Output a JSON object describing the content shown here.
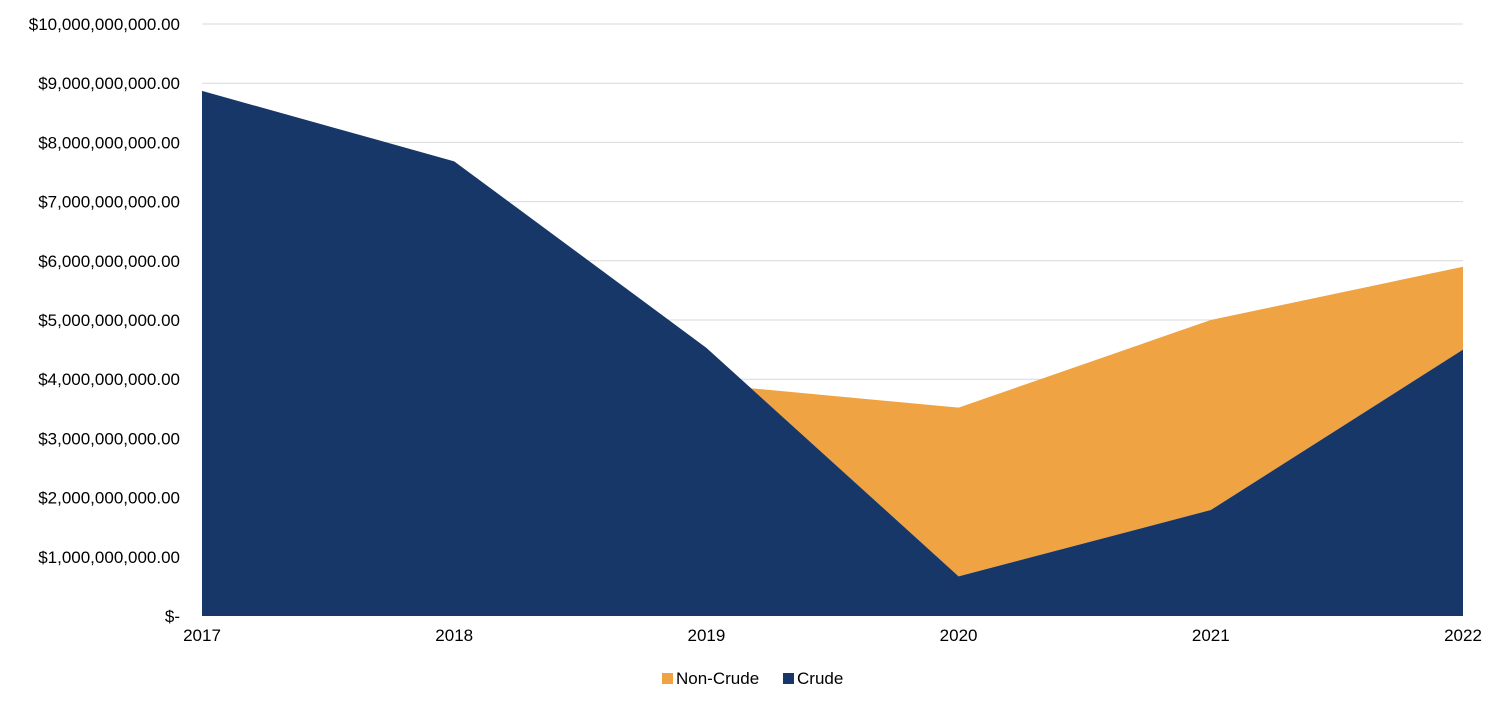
{
  "chart_data": {
    "type": "area",
    "stacking": "overlapping",
    "categories": [
      "2017",
      "2018",
      "2019",
      "2020",
      "2021",
      "2022"
    ],
    "series": [
      {
        "name": "Non-Crude",
        "color": "#f0a342",
        "values": [
          null,
          null,
          3850000000,
          3520000000,
          5000000000,
          5900000000
        ],
        "starts_between": [
          "2019",
          "2020",
          0.17
        ]
      },
      {
        "name": "Crude",
        "color": "#173769",
        "values": [
          8870000000,
          7680000000,
          4530000000,
          670000000,
          1790000000,
          4500000000
        ]
      }
    ],
    "ylim": [
      0,
      10000000000
    ],
    "yticks": [
      {
        "value": 0,
        "label": "$-"
      },
      {
        "value": 1000000000,
        "label": "$1,000,000,000.00"
      },
      {
        "value": 2000000000,
        "label": "$2,000,000,000.00"
      },
      {
        "value": 3000000000,
        "label": "$3,000,000,000.00"
      },
      {
        "value": 4000000000,
        "label": "$4,000,000,000.00"
      },
      {
        "value": 5000000000,
        "label": "$5,000,000,000.00"
      },
      {
        "value": 6000000000,
        "label": "$6,000,000,000.00"
      },
      {
        "value": 7000000000,
        "label": "$7,000,000,000.00"
      },
      {
        "value": 8000000000,
        "label": "$8,000,000,000.00"
      },
      {
        "value": 9000000000,
        "label": "$9,000,000,000.00"
      },
      {
        "value": 10000000000,
        "label": "$10,000,000,000.00"
      }
    ],
    "grid": true,
    "legend": {
      "position": "bottom-center",
      "entries": [
        {
          "name": "Non-Crude",
          "color": "#f0a342"
        },
        {
          "name": "Crude",
          "color": "#173769"
        }
      ]
    },
    "title": "",
    "xlabel": "",
    "ylabel": ""
  }
}
